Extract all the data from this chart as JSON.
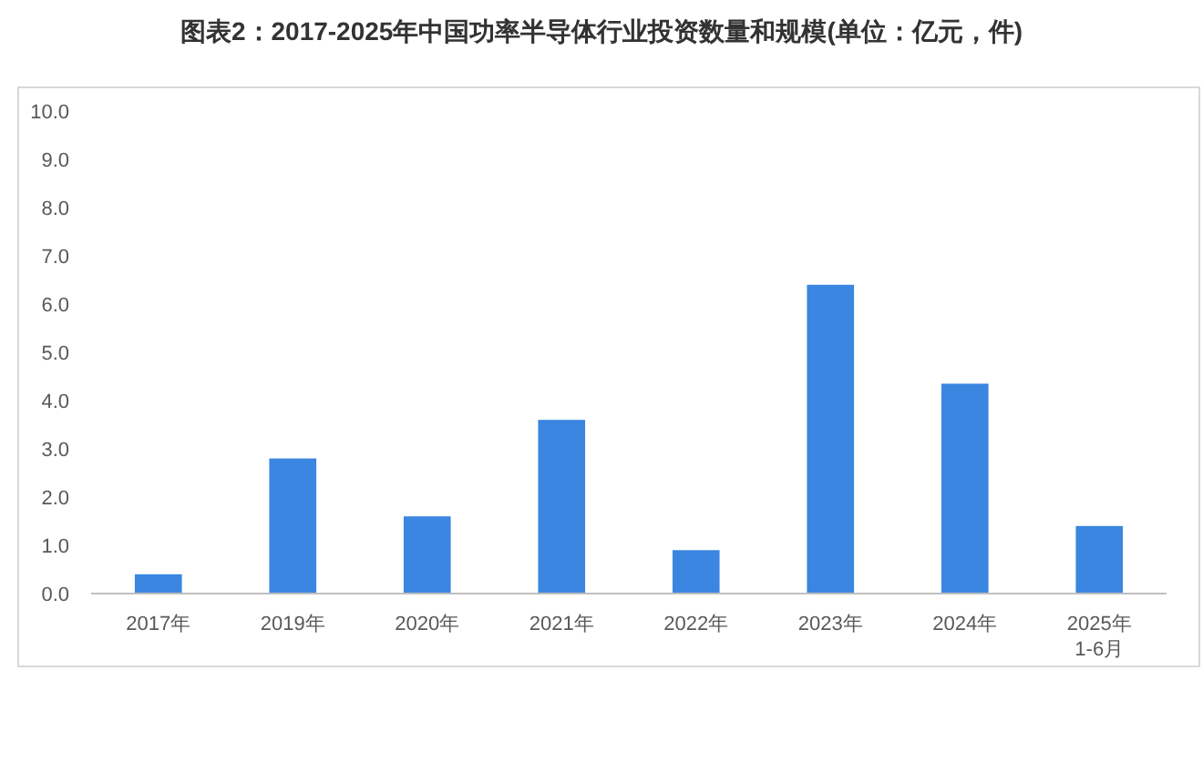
{
  "chart_data": {
    "type": "bar",
    "title": "图表2：2017-2025年中国功率半导体行业投资数量和规模(单位：亿元，件)",
    "categories": [
      "2017年",
      "2019年",
      "2020年",
      "2021年",
      "2022年",
      "2023年",
      "2024年",
      "2025年\n1-6月"
    ],
    "values": [
      0.4,
      2.8,
      1.6,
      3.6,
      0.9,
      6.4,
      4.35,
      1.4
    ],
    "color": "#3a86e0",
    "ylim": [
      0,
      10
    ],
    "yticks": [
      {
        "value": 0,
        "label": "0.0"
      },
      {
        "value": 1,
        "label": "1.0"
      },
      {
        "value": 2,
        "label": "2.0"
      },
      {
        "value": 3,
        "label": "3.0"
      },
      {
        "value": 4,
        "label": "4.0"
      },
      {
        "value": 5,
        "label": "5.0"
      },
      {
        "value": 6,
        "label": "6.0"
      },
      {
        "value": 7,
        "label": "7.0"
      },
      {
        "value": 8,
        "label": "8.0"
      },
      {
        "value": 9,
        "label": "9.0"
      },
      {
        "value": 10,
        "label": "10.0"
      }
    ],
    "grid": false
  }
}
